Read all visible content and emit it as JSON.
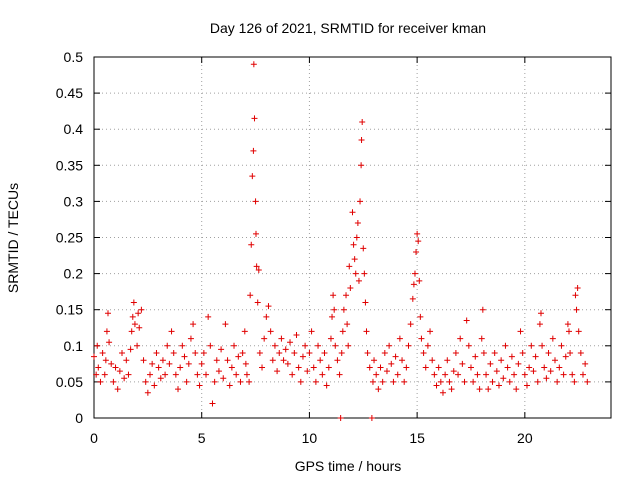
{
  "chart_data": {
    "type": "scatter",
    "title": "Day 126 of 2021, SRMTID for receiver kman",
    "xlabel": "GPS time / hours",
    "ylabel": "SRMTID / TECUs",
    "xlim": [
      0,
      24
    ],
    "ylim": [
      0,
      0.5
    ],
    "grid": true,
    "marker": "+",
    "series_color": "#e00000",
    "x_ticks": [
      {
        "value": 0,
        "label": "0"
      },
      {
        "value": 5,
        "label": "5"
      },
      {
        "value": 10,
        "label": "10"
      },
      {
        "value": 15,
        "label": "15"
      },
      {
        "value": 20,
        "label": "20"
      }
    ],
    "y_ticks": [
      {
        "value": 0,
        "label": "0"
      },
      {
        "value": 0.05,
        "label": "0.05"
      },
      {
        "value": 0.1,
        "label": "0.1"
      },
      {
        "value": 0.15,
        "label": "0.15"
      },
      {
        "value": 0.2,
        "label": "0.2"
      },
      {
        "value": 0.25,
        "label": "0.25"
      },
      {
        "value": 0.3,
        "label": "0.3"
      },
      {
        "value": 0.35,
        "label": "0.35"
      },
      {
        "value": 0.4,
        "label": "0.4"
      },
      {
        "value": 0.45,
        "label": "0.45"
      },
      {
        "value": 0.5,
        "label": "0.5"
      }
    ],
    "points": [
      [
        0.0,
        0.085
      ],
      [
        0.1,
        0.06
      ],
      [
        0.15,
        0.1
      ],
      [
        0.2,
        0.07
      ],
      [
        0.3,
        0.05
      ],
      [
        0.4,
        0.09
      ],
      [
        0.5,
        0.06
      ],
      [
        0.55,
        0.08
      ],
      [
        0.6,
        0.12
      ],
      [
        0.65,
        0.145
      ],
      [
        0.7,
        0.105
      ],
      [
        0.8,
        0.075
      ],
      [
        0.9,
        0.05
      ],
      [
        1.0,
        0.07
      ],
      [
        1.1,
        0.04
      ],
      [
        1.2,
        0.065
      ],
      [
        1.3,
        0.09
      ],
      [
        1.4,
        0.055
      ],
      [
        1.5,
        0.08
      ],
      [
        1.6,
        0.06
      ],
      [
        1.7,
        0.095
      ],
      [
        1.75,
        0.12
      ],
      [
        1.8,
        0.14
      ],
      [
        1.85,
        0.16
      ],
      [
        1.9,
        0.13
      ],
      [
        2.0,
        0.1
      ],
      [
        2.05,
        0.145
      ],
      [
        2.1,
        0.125
      ],
      [
        2.2,
        0.15
      ],
      [
        2.3,
        0.08
      ],
      [
        2.4,
        0.05
      ],
      [
        2.5,
        0.035
      ],
      [
        2.6,
        0.06
      ],
      [
        2.7,
        0.075
      ],
      [
        2.8,
        0.045
      ],
      [
        2.9,
        0.09
      ],
      [
        3.0,
        0.07
      ],
      [
        3.1,
        0.055
      ],
      [
        3.2,
        0.08
      ],
      [
        3.3,
        0.06
      ],
      [
        3.4,
        0.1
      ],
      [
        3.5,
        0.075
      ],
      [
        3.6,
        0.12
      ],
      [
        3.7,
        0.09
      ],
      [
        3.8,
        0.06
      ],
      [
        3.9,
        0.04
      ],
      [
        4.0,
        0.07
      ],
      [
        4.1,
        0.1
      ],
      [
        4.2,
        0.085
      ],
      [
        4.3,
        0.05
      ],
      [
        4.4,
        0.075
      ],
      [
        4.5,
        0.11
      ],
      [
        4.6,
        0.13
      ],
      [
        4.7,
        0.09
      ],
      [
        4.8,
        0.06
      ],
      [
        4.9,
        0.045
      ],
      [
        5.0,
        0.075
      ],
      [
        5.1,
        0.09
      ],
      [
        5.2,
        0.06
      ],
      [
        5.3,
        0.14
      ],
      [
        5.4,
        0.1
      ],
      [
        5.5,
        0.02
      ],
      [
        5.6,
        0.05
      ],
      [
        5.7,
        0.08
      ],
      [
        5.8,
        0.065
      ],
      [
        5.9,
        0.095
      ],
      [
        6.0,
        0.055
      ],
      [
        6.1,
        0.13
      ],
      [
        6.2,
        0.08
      ],
      [
        6.3,
        0.045
      ],
      [
        6.4,
        0.07
      ],
      [
        6.5,
        0.1
      ],
      [
        6.6,
        0.06
      ],
      [
        6.7,
        0.085
      ],
      [
        6.8,
        0.05
      ],
      [
        6.9,
        0.09
      ],
      [
        7.0,
        0.12
      ],
      [
        7.05,
        0.075
      ],
      [
        7.1,
        0.06
      ],
      [
        7.2,
        0.05
      ],
      [
        7.25,
        0.17
      ],
      [
        7.3,
        0.24
      ],
      [
        7.35,
        0.335
      ],
      [
        7.4,
        0.37
      ],
      [
        7.42,
        0.49
      ],
      [
        7.45,
        0.415
      ],
      [
        7.5,
        0.3
      ],
      [
        7.52,
        0.255
      ],
      [
        7.55,
        0.21
      ],
      [
        7.6,
        0.16
      ],
      [
        7.65,
        0.205
      ],
      [
        7.7,
        0.09
      ],
      [
        7.8,
        0.07
      ],
      [
        7.9,
        0.11
      ],
      [
        8.0,
        0.14
      ],
      [
        8.1,
        0.155
      ],
      [
        8.2,
        0.12
      ],
      [
        8.3,
        0.08
      ],
      [
        8.4,
        0.1
      ],
      [
        8.5,
        0.065
      ],
      [
        8.6,
        0.09
      ],
      [
        8.7,
        0.11
      ],
      [
        8.8,
        0.08
      ],
      [
        8.9,
        0.095
      ],
      [
        9.0,
        0.075
      ],
      [
        9.1,
        0.105
      ],
      [
        9.2,
        0.06
      ],
      [
        9.3,
        0.09
      ],
      [
        9.4,
        0.115
      ],
      [
        9.5,
        0.07
      ],
      [
        9.6,
        0.05
      ],
      [
        9.7,
        0.085
      ],
      [
        9.8,
        0.1
      ],
      [
        9.9,
        0.065
      ],
      [
        10.0,
        0.09
      ],
      [
        10.1,
        0.12
      ],
      [
        10.2,
        0.07
      ],
      [
        10.3,
        0.05
      ],
      [
        10.4,
        0.1
      ],
      [
        10.5,
        0.08
      ],
      [
        10.6,
        0.06
      ],
      [
        10.7,
        0.09
      ],
      [
        10.8,
        0.045
      ],
      [
        10.9,
        0.07
      ],
      [
        11.0,
        0.11
      ],
      [
        11.05,
        0.14
      ],
      [
        11.1,
        0.17
      ],
      [
        11.15,
        0.15
      ],
      [
        11.2,
        0.1
      ],
      [
        11.3,
        0.08
      ],
      [
        11.4,
        0.06
      ],
      [
        11.45,
        0.0
      ],
      [
        11.5,
        0.09
      ],
      [
        11.55,
        0.12
      ],
      [
        11.6,
        0.15
      ],
      [
        11.7,
        0.17
      ],
      [
        11.75,
        0.13
      ],
      [
        11.8,
        0.1
      ],
      [
        11.85,
        0.21
      ],
      [
        11.9,
        0.18
      ],
      [
        12.0,
        0.285
      ],
      [
        12.05,
        0.24
      ],
      [
        12.1,
        0.22
      ],
      [
        12.15,
        0.2
      ],
      [
        12.2,
        0.25
      ],
      [
        12.25,
        0.27
      ],
      [
        12.3,
        0.19
      ],
      [
        12.35,
        0.3
      ],
      [
        12.4,
        0.35
      ],
      [
        12.42,
        0.385
      ],
      [
        12.45,
        0.41
      ],
      [
        12.5,
        0.235
      ],
      [
        12.55,
        0.2
      ],
      [
        12.6,
        0.16
      ],
      [
        12.65,
        0.12
      ],
      [
        12.7,
        0.09
      ],
      [
        12.8,
        0.07
      ],
      [
        12.9,
        0.0
      ],
      [
        12.95,
        0.05
      ],
      [
        13.0,
        0.08
      ],
      [
        13.1,
        0.06
      ],
      [
        13.2,
        0.04
      ],
      [
        13.3,
        0.07
      ],
      [
        13.4,
        0.05
      ],
      [
        13.5,
        0.09
      ],
      [
        13.6,
        0.065
      ],
      [
        13.7,
        0.1
      ],
      [
        13.8,
        0.075
      ],
      [
        13.9,
        0.05
      ],
      [
        14.0,
        0.085
      ],
      [
        14.1,
        0.06
      ],
      [
        14.2,
        0.11
      ],
      [
        14.3,
        0.08
      ],
      [
        14.4,
        0.05
      ],
      [
        14.5,
        0.07
      ],
      [
        14.6,
        0.1
      ],
      [
        14.7,
        0.13
      ],
      [
        14.8,
        0.165
      ],
      [
        14.85,
        0.185
      ],
      [
        14.9,
        0.2
      ],
      [
        14.95,
        0.23
      ],
      [
        15.0,
        0.255
      ],
      [
        15.05,
        0.245
      ],
      [
        15.1,
        0.19
      ],
      [
        15.15,
        0.14
      ],
      [
        15.2,
        0.11
      ],
      [
        15.3,
        0.09
      ],
      [
        15.4,
        0.07
      ],
      [
        15.5,
        0.1
      ],
      [
        15.6,
        0.12
      ],
      [
        15.7,
        0.08
      ],
      [
        15.8,
        0.06
      ],
      [
        15.9,
        0.045
      ],
      [
        16.0,
        0.07
      ],
      [
        16.1,
        0.05
      ],
      [
        16.2,
        0.035
      ],
      [
        16.3,
        0.06
      ],
      [
        16.4,
        0.08
      ],
      [
        16.5,
        0.05
      ],
      [
        16.6,
        0.04
      ],
      [
        16.7,
        0.065
      ],
      [
        16.8,
        0.09
      ],
      [
        16.9,
        0.06
      ],
      [
        17.0,
        0.11
      ],
      [
        17.1,
        0.075
      ],
      [
        17.2,
        0.05
      ],
      [
        17.3,
        0.135
      ],
      [
        17.4,
        0.1
      ],
      [
        17.5,
        0.07
      ],
      [
        17.6,
        0.05
      ],
      [
        17.7,
        0.085
      ],
      [
        17.8,
        0.06
      ],
      [
        17.9,
        0.04
      ],
      [
        18.0,
        0.11
      ],
      [
        18.05,
        0.15
      ],
      [
        18.1,
        0.09
      ],
      [
        18.2,
        0.06
      ],
      [
        18.3,
        0.04
      ],
      [
        18.4,
        0.075
      ],
      [
        18.5,
        0.05
      ],
      [
        18.6,
        0.09
      ],
      [
        18.7,
        0.065
      ],
      [
        18.8,
        0.045
      ],
      [
        18.9,
        0.08
      ],
      [
        19.0,
        0.055
      ],
      [
        19.1,
        0.1
      ],
      [
        19.2,
        0.07
      ],
      [
        19.3,
        0.05
      ],
      [
        19.4,
        0.085
      ],
      [
        19.5,
        0.06
      ],
      [
        19.6,
        0.04
      ],
      [
        19.7,
        0.075
      ],
      [
        19.8,
        0.12
      ],
      [
        19.9,
        0.09
      ],
      [
        20.0,
        0.06
      ],
      [
        20.1,
        0.045
      ],
      [
        20.2,
        0.07
      ],
      [
        20.3,
        0.1
      ],
      [
        20.4,
        0.065
      ],
      [
        20.5,
        0.085
      ],
      [
        20.6,
        0.05
      ],
      [
        20.7,
        0.13
      ],
      [
        20.75,
        0.145
      ],
      [
        20.8,
        0.1
      ],
      [
        20.9,
        0.07
      ],
      [
        21.0,
        0.055
      ],
      [
        21.1,
        0.09
      ],
      [
        21.2,
        0.065
      ],
      [
        21.3,
        0.11
      ],
      [
        21.4,
        0.08
      ],
      [
        21.5,
        0.05
      ],
      [
        21.6,
        0.07
      ],
      [
        21.7,
        0.1
      ],
      [
        21.8,
        0.06
      ],
      [
        21.9,
        0.085
      ],
      [
        22.0,
        0.13
      ],
      [
        22.05,
        0.12
      ],
      [
        22.1,
        0.09
      ],
      [
        22.2,
        0.06
      ],
      [
        22.3,
        0.05
      ],
      [
        22.35,
        0.17
      ],
      [
        22.4,
        0.15
      ],
      [
        22.45,
        0.18
      ],
      [
        22.5,
        0.12
      ],
      [
        22.6,
        0.09
      ],
      [
        22.7,
        0.06
      ],
      [
        22.8,
        0.075
      ],
      [
        22.9,
        0.05
      ]
    ]
  }
}
